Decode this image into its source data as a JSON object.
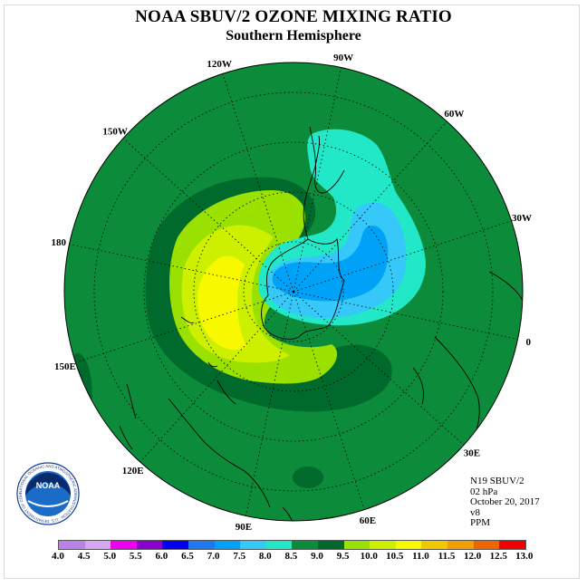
{
  "title": "NOAA SBUV/2 OZONE MIXING RATIO",
  "subtitle": "Southern Hemisphere",
  "logo_text": "NOAA",
  "logo_ring_text": "NATIONAL OCEANIC AND ATMOSPHERIC ADMINISTRATION · U.S. DEPARTMENT OF COMMERCE",
  "info": {
    "instrument": "N19 SBUV/2",
    "pressure": "02 hPa",
    "date": "October 20, 2017",
    "version": "v8",
    "unit": "PPM"
  },
  "longitude_labels": [
    {
      "lon": 0,
      "text": "0"
    },
    {
      "lon": 30,
      "text": "30E"
    },
    {
      "lon": 60,
      "text": "60E"
    },
    {
      "lon": 90,
      "text": "90E"
    },
    {
      "lon": 120,
      "text": "120E"
    },
    {
      "lon": 150,
      "text": "150E"
    },
    {
      "lon": 180,
      "text": "180"
    },
    {
      "lon": -150,
      "text": "150W"
    },
    {
      "lon": -120,
      "text": "120W"
    },
    {
      "lon": -90,
      "text": "90W"
    },
    {
      "lon": -60,
      "text": "60W"
    },
    {
      "lon": -30,
      "text": "30W"
    }
  ],
  "legend": {
    "ticks": [
      "4.0",
      "4.5",
      "5.0",
      "5.5",
      "6.0",
      "6.5",
      "7.0",
      "7.5",
      "8.0",
      "8.5",
      "9.0",
      "9.5",
      "10.0",
      "10.5",
      "11.0",
      "11.5",
      "12.0",
      "12.5",
      "13.0"
    ],
    "colors": [
      "#b982e8",
      "#d6a6f3",
      "#f000f0",
      "#8a00d0",
      "#0000ee",
      "#1e78f0",
      "#00a2f8",
      "#36c8f8",
      "#22e8c8",
      "#0c8c3a",
      "#006a2c",
      "#9ae000",
      "#ccf000",
      "#f8f800",
      "#f0c800",
      "#f0a000",
      "#f06400",
      "#f00000",
      "#8c5028"
    ]
  },
  "colors": {
    "background_green": "#0c8c3a",
    "dark_green": "#006a2c",
    "lime": "#9ae000",
    "yellow_green": "#ccf000",
    "yellow": "#f8f800",
    "aqua": "#22e8c8",
    "cyan_blue": "#36c8f8",
    "blue": "#00a2f8",
    "deep_blue": "#1e78f0"
  }
}
